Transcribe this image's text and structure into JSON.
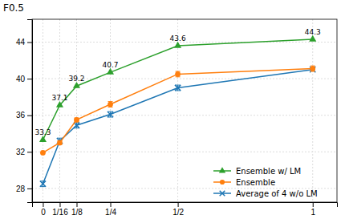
{
  "chart_data": {
    "type": "line",
    "y_label": "F0.5",
    "x": [
      0,
      0.0625,
      0.125,
      0.25,
      0.5,
      1.0
    ],
    "series": [
      {
        "name": "Ensemble w/ LM",
        "values": [
          33.3,
          37.1,
          39.2,
          40.7,
          43.6,
          44.3
        ],
        "marker": "triangle",
        "data_labels": true
      },
      {
        "name": "Ensemble",
        "values": [
          31.9,
          33.0,
          35.5,
          37.2,
          40.5,
          41.1
        ],
        "errors": [
          0,
          0.2,
          0.2,
          0.3,
          0.3,
          0.3
        ],
        "marker": "circle"
      },
      {
        "name": "Average of 4 w/o LM",
        "values": [
          28.5,
          33.2,
          34.9,
          36.1,
          39.0,
          41.0
        ],
        "errors": [
          0.3,
          0.3,
          0.3,
          0.3,
          0.3,
          0
        ],
        "marker": "x"
      }
    ],
    "xlim": [
      -0.04,
      1.09
    ],
    "xticks": [
      0,
      {
        "value": 0.0625,
        "label": "1/16"
      },
      {
        "value": 0.125,
        "label": "1/8"
      },
      {
        "value": 0.25,
        "label": "1/4"
      },
      {
        "value": 0.5,
        "label": "1/2"
      },
      1
    ],
    "ylim": [
      26.5,
      46.5
    ],
    "yticks": [
      28,
      32,
      36,
      40,
      44
    ],
    "grid": true,
    "legend": "lower right"
  }
}
